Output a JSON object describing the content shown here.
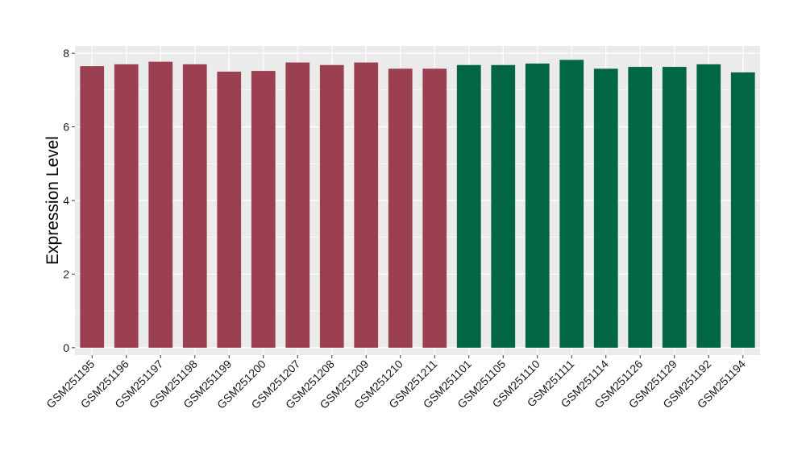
{
  "chart_data": {
    "type": "bar",
    "title": "",
    "xlabel": "",
    "ylabel": "Expression Level",
    "ylim": [
      -0.2,
      8.2
    ],
    "yticks": [
      0,
      2,
      4,
      6,
      8
    ],
    "ytick_labels": [
      "0",
      "2",
      "4",
      "6",
      "8"
    ],
    "grid": true,
    "legend": "none",
    "panel_background": "#EBEBEB",
    "grid_color": "#FFFFFF",
    "categories": [
      "GSM251195",
      "GSM251196",
      "GSM251197",
      "GSM251198",
      "GSM251199",
      "GSM251200",
      "GSM251207",
      "GSM251208",
      "GSM251209",
      "GSM251210",
      "GSM251211",
      "GSM251101",
      "GSM251105",
      "GSM251110",
      "GSM251111",
      "GSM251114",
      "GSM251126",
      "GSM251129",
      "GSM251192",
      "GSM251194"
    ],
    "values": [
      7.65,
      7.7,
      7.77,
      7.7,
      7.5,
      7.52,
      7.75,
      7.68,
      7.75,
      7.58,
      7.58,
      7.68,
      7.68,
      7.72,
      7.82,
      7.58,
      7.63,
      7.63,
      7.7,
      7.48
    ],
    "bar_colors": [
      "#9B4050",
      "#9B4050",
      "#9B4050",
      "#9B4050",
      "#9B4050",
      "#9B4050",
      "#9B4050",
      "#9B4050",
      "#9B4050",
      "#9B4050",
      "#9B4050",
      "#006644",
      "#006644",
      "#006644",
      "#006644",
      "#006644",
      "#006644",
      "#006644",
      "#006644",
      "#006644"
    ]
  }
}
